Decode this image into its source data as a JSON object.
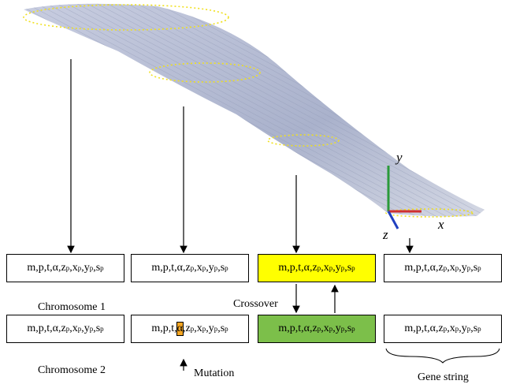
{
  "axes": {
    "x": "x",
    "y": "y",
    "z": "z"
  },
  "rows": [
    {
      "label": "Chromosome 1",
      "boxes": [
        [
          {
            "t": "m,p,t,α,z",
            "sub": "p"
          },
          {
            "t": ",x",
            "sub": "p"
          },
          {
            "t": ",y",
            "sub": "p"
          },
          {
            "t": ",s",
            "sub": "p"
          }
        ],
        [
          {
            "t": "m,p,t,α,z",
            "sub": "p"
          },
          {
            "t": ",x",
            "sub": "p"
          },
          {
            "t": ",y",
            "sub": "p"
          },
          {
            "t": ",s",
            "sub": "p"
          }
        ],
        [
          {
            "t": "m,p,t,α,z",
            "sub": "p"
          },
          {
            "t": ",x",
            "sub": "p"
          },
          {
            "t": ",y",
            "sub": "p"
          },
          {
            "t": ",s",
            "sub": "p"
          }
        ],
        [
          {
            "t": "m,p,t,α,z",
            "sub": "p"
          },
          {
            "t": ",x",
            "sub": "p"
          },
          {
            "t": ",y",
            "sub": "p"
          },
          {
            "t": ",s",
            "sub": "p"
          }
        ]
      ],
      "box_colors": [
        "#ffffff",
        "#ffffff",
        "#ffff00",
        "#ffffff"
      ]
    },
    {
      "label": "Chromosome 2",
      "boxes": [
        [
          {
            "t": "m,p,t,α,z",
            "sub": "p"
          },
          {
            "t": ",x",
            "sub": "p"
          },
          {
            "t": ",y",
            "sub": "p"
          },
          {
            "t": ",s",
            "sub": "p"
          }
        ],
        [
          {
            "t": "m,p,t,"
          },
          {
            "t": "α",
            "highlight": true
          },
          {
            "t": ",z",
            "sub": "p"
          },
          {
            "t": ",x",
            "sub": "p"
          },
          {
            "t": ",y",
            "sub": "p"
          },
          {
            "t": ",s",
            "sub": "p"
          }
        ],
        [
          {
            "t": "m,p,t,α,z",
            "sub": "p"
          },
          {
            "t": ",x",
            "sub": "p"
          },
          {
            "t": ",y",
            "sub": "p"
          },
          {
            "t": ",s",
            "sub": "p"
          }
        ],
        [
          {
            "t": "m,p,t,α,z",
            "sub": "p"
          },
          {
            "t": ",x",
            "sub": "p"
          },
          {
            "t": ",y",
            "sub": "p"
          },
          {
            "t": ",s",
            "sub": "p"
          }
        ]
      ],
      "box_colors": [
        "#ffffff",
        "#ffffff",
        "#7cbf4a",
        "#ffffff"
      ]
    }
  ],
  "labels": {
    "crossover": "Crossover",
    "mutation": "Mutation",
    "gene_string": "Gene string"
  }
}
